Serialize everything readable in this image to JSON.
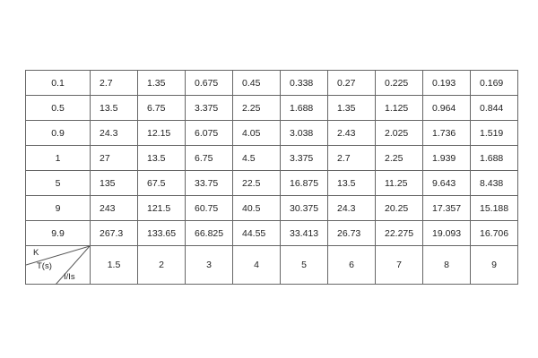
{
  "table": {
    "rows": [
      {
        "k": "0.1",
        "values": [
          "2.7",
          "1.35",
          "0.675",
          "0.45",
          "0.338",
          "0.27",
          "0.225",
          "0.193",
          "0.169"
        ]
      },
      {
        "k": "0.5",
        "values": [
          "13.5",
          "6.75",
          "3.375",
          "2.25",
          "1.688",
          "1.35",
          "1.125",
          "0.964",
          "0.844"
        ]
      },
      {
        "k": "0.9",
        "values": [
          "24.3",
          "12.15",
          "6.075",
          "4.05",
          "3.038",
          "2.43",
          "2.025",
          "1.736",
          "1.519"
        ]
      },
      {
        "k": "1",
        "values": [
          "27",
          "13.5",
          "6.75",
          "4.5",
          "3.375",
          "2.7",
          "2.25",
          "1.939",
          "1.688"
        ]
      },
      {
        "k": "5",
        "values": [
          "135",
          "67.5",
          "33.75",
          "22.5",
          "16.875",
          "13.5",
          "11.25",
          "9.643",
          "8.438"
        ]
      },
      {
        "k": "9",
        "values": [
          "243",
          "121.5",
          "60.75",
          "40.5",
          "30.375",
          "24.3",
          "20.25",
          "17.357",
          "15.188"
        ]
      },
      {
        "k": "9.9",
        "values": [
          "267.3",
          "133.65",
          "66.825",
          "44.55",
          "33.413",
          "26.73",
          "22.275",
          "19.093",
          "16.706"
        ]
      }
    ],
    "header_corner": {
      "k": "K",
      "t": "T(s)",
      "i": "I/Is"
    },
    "i_values": [
      "1.5",
      "2",
      "3",
      "4",
      "5",
      "6",
      "7",
      "8",
      "9"
    ]
  }
}
